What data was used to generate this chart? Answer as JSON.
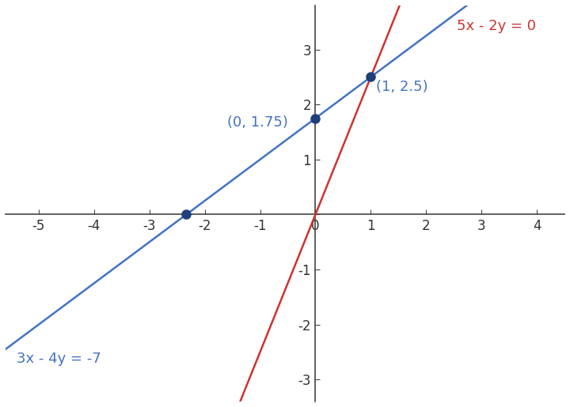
{
  "line1_label": "3x - 4y = -7",
  "line2_label": "5x - 2y = 0",
  "line1_color": "#4472C4",
  "line2_color": "#CC3333",
  "line1_eq_m": 0.75,
  "line1_eq_b": 1.75,
  "line2_eq_m": 2.5,
  "line2_eq_b": 0.0,
  "xlim": [
    -5.6,
    4.5
  ],
  "ylim": [
    -3.4,
    3.8
  ],
  "xticks": [
    -5,
    -4,
    -3,
    -2,
    -1,
    0,
    1,
    2,
    3,
    4
  ],
  "yticks": [
    -3,
    -2,
    -1,
    0,
    1,
    2,
    3
  ],
  "intersection_x": 1.0,
  "intersection_y": 2.5,
  "point1_x": 0.0,
  "point1_y": 1.75,
  "point2_x": -2.3333,
  "point2_y": 0.0,
  "point_color": "#1F3F7A",
  "label_intersection": "(1, 2.5)",
  "label_point1": "(0, 1.75)",
  "background_color": "#FFFFFF",
  "axis_color": "#444444",
  "tick_fontsize": 12,
  "label_fontsize": 13,
  "line_width": 1.8,
  "point_size": 8
}
